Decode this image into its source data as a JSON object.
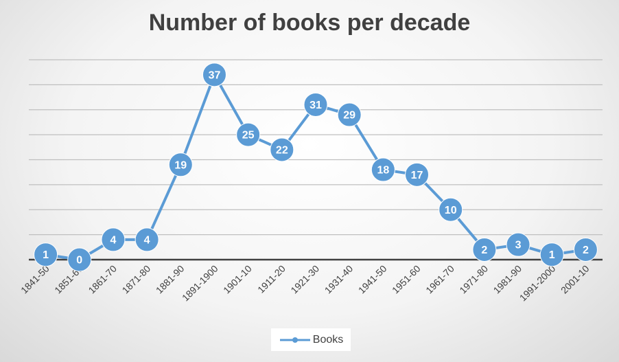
{
  "chart_data": {
    "type": "line",
    "title": "Number of books per decade",
    "categories": [
      "1841-50",
      "1851-60",
      "1861-70",
      "1871-80",
      "1881-90",
      "1891-1900",
      "1901-10",
      "1911-20",
      "1921-30",
      "1931-40",
      "1941-50",
      "1951-60",
      "1961-70",
      "1971-80",
      "1981-90",
      "1991-2000",
      "2001-10"
    ],
    "series": [
      {
        "name": "Books",
        "values": [
          1,
          0,
          4,
          4,
          19,
          37,
          25,
          22,
          31,
          29,
          18,
          17,
          10,
          2,
          3,
          1,
          2
        ],
        "color": "#5b9bd5"
      }
    ],
    "ylim": [
      0,
      40
    ],
    "grid": true,
    "data_labels": true,
    "legend": "bottom"
  }
}
